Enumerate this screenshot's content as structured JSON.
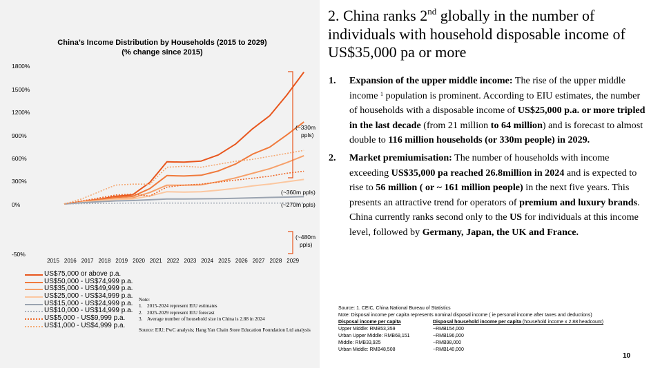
{
  "chart_data": {
    "type": "line",
    "title": "China’s Income Distribution by Households (2015 to 2029)",
    "subtitle": "(% change since 2015)",
    "x": [
      2015,
      2016,
      2017,
      2018,
      2019,
      2020,
      2021,
      2022,
      2023,
      2024,
      2025,
      2026,
      2027,
      2028,
      2029
    ],
    "y_tick_labels": [
      "1800%",
      "1500%",
      "1200%",
      "900%",
      "600%",
      "300%",
      "0%",
      "-50%"
    ],
    "series": [
      {
        "name": "US$75,000 or above p.a.",
        "color": "#e8561d",
        "dash": "solid",
        "values": [
          0,
          30,
          60,
          100,
          120,
          280,
          550,
          545,
          560,
          640,
          780,
          980,
          1150,
          1420,
          1720
        ]
      },
      {
        "name": "US$50,000 - US$74,999 p.a.",
        "color": "#f07a3c",
        "dash": "solid",
        "values": [
          0,
          28,
          55,
          85,
          100,
          200,
          370,
          365,
          375,
          430,
          520,
          650,
          740,
          900,
          1070
        ]
      },
      {
        "name": "US$35,000 - US$49,999 p.a.",
        "color": "#f6a06a",
        "dash": "solid",
        "values": [
          0,
          25,
          45,
          70,
          80,
          150,
          245,
          245,
          250,
          290,
          340,
          400,
          460,
          540,
          630
        ]
      },
      {
        "name": "US$25,000 - US$34,999 p.a.",
        "color": "#fbc7a0",
        "dash": "solid",
        "values": [
          0,
          22,
          40,
          60,
          65,
          105,
          160,
          155,
          160,
          180,
          205,
          235,
          260,
          290,
          320
        ]
      },
      {
        "name": "US$15,000 - US$24,999 p.a.",
        "color": "#9aa3b0",
        "dash": "solid",
        "values": [
          0,
          15,
          30,
          40,
          45,
          55,
          65,
          65,
          67,
          70,
          75,
          80,
          85,
          90,
          95
        ]
      },
      {
        "name": "US$10,000 - US$14,999 p.a.",
        "color": "#a8afba",
        "dash": "dotted",
        "values": [
          0,
          5,
          8,
          10,
          12,
          12,
          12,
          12,
          12,
          12,
          12,
          12,
          12,
          12,
          12
        ]
      },
      {
        "name": "US$5,000 - US$9,999 p.a.",
        "color": "#ee6a2a",
        "dash": "dotted",
        "values": [
          0,
          -3,
          -6,
          -9,
          -10,
          -8,
          -17,
          -19,
          -20,
          -22,
          -24,
          -26,
          -28,
          -31,
          -33
        ]
      },
      {
        "name": "US$1,000 - US$4,999 p.a.",
        "color": "#f4a872",
        "dash": "dotted",
        "values": [
          0,
          -5,
          -12,
          -19,
          -20,
          -20,
          -37,
          -38,
          -37,
          -40,
          -43,
          -45,
          -48,
          -51,
          -54
        ]
      }
    ],
    "annotations": [
      "(~330m ppls)",
      "(~360m ppls)",
      "(~270m ppls)",
      "(~480m ppls)"
    ]
  },
  "note": {
    "title": "Note:",
    "items": [
      "2015-2024 represent EIU estimates",
      "2025-2029 represent EIU forecast",
      "Average number of household size in China is 2.88 in 2024"
    ],
    "source": "Source: EIU; PwC analysis; Hang Yan Chain Store Education Foundation Ltd analysis"
  },
  "headline": {
    "pre": "2. China ranks 2",
    "sup": "nd",
    "post": " globally in the number of individuals with household disposable income of US$35,000 pa or more"
  },
  "points": [
    {
      "num": "1.",
      "lead": "Expansion of the upper middle income:",
      "t1": " The rise of the upper middle income ",
      "sup": "1",
      "t2": " population is prominent. According to EIU estimates, the number of households with a disposable income of ",
      "b1": "US$25,000 p.a. or more tripled in the last decade",
      "t3": " (from 21 million ",
      "b2": "to 64 million",
      "t4": ") and is forecast to almost double to ",
      "b3": "116 million households (or 330m people) in 2029."
    },
    {
      "num": "2.",
      "lead": "Market premiumisation:",
      "t1": " The number of households with income exceeding ",
      "b1": "US$35,000 pa reached 26.8million in 2024",
      "t2": " and is expected to rise to ",
      "b2": "56 million ( or ~ 161 million people)",
      "t3": " in the next five years. This presents an attractive trend for operators of ",
      "b3": "premium and luxury brands",
      "t4": ". China currently ranks second only to the ",
      "b4": "US",
      "t5": " for individuals at this income level, followed by ",
      "b5": "Germany, Japan, the UK and France."
    }
  ],
  "sources": {
    "line1": "Source: 1. CEIC, China National Bureau of Statistics",
    "line2": "Note: Disposal income per capita represents nominal disposal income ( ie personal income after taxes and deductions)",
    "h1": "Disposal income per capita",
    "h2": "Disposal household income per capita",
    "h2b": " (household income x 2.88 headcount)",
    "rows": [
      {
        "a": "Upper Middle: RMB53,359",
        "b": "~RMB154,000"
      },
      {
        "a": "Urban Upper Middle: RMB68,151",
        "b": "~RMB196,000"
      },
      {
        "a": "Middle: RMB33,925",
        "b": "~RMB98,000"
      },
      {
        "a": "Urban Middle: RMB48,508",
        "b": "~RMB140,000"
      }
    ]
  },
  "page_number": "10"
}
